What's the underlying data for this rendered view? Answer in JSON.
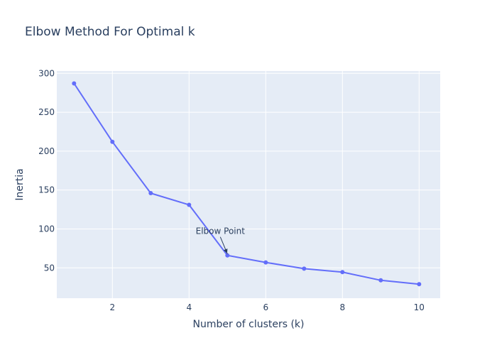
{
  "chart_data": {
    "type": "line",
    "title": "Elbow Method For Optimal k",
    "xlabel": "Number of clusters (k)",
    "ylabel": "Inertia",
    "x": [
      1,
      2,
      3,
      4,
      5,
      6,
      7,
      8,
      9,
      10
    ],
    "series": [
      {
        "values": [
          287,
          212,
          146,
          131,
          66,
          57,
          49,
          44.5,
          34,
          29
        ]
      }
    ],
    "xlim": [
      0.55,
      10.55
    ],
    "ylim": [
      11,
      303
    ],
    "xticks": [
      2,
      4,
      6,
      8,
      10
    ],
    "yticks": [
      50,
      100,
      150,
      200,
      250,
      300
    ],
    "grid": true,
    "legend": "none",
    "annotation": {
      "text": "Elbow Point",
      "x": 5,
      "y": 66
    },
    "colors": {
      "line": "#636efa",
      "plot_bg": "#e5ecf6",
      "grid": "#ffffff",
      "text": "#2a3f5f"
    }
  }
}
